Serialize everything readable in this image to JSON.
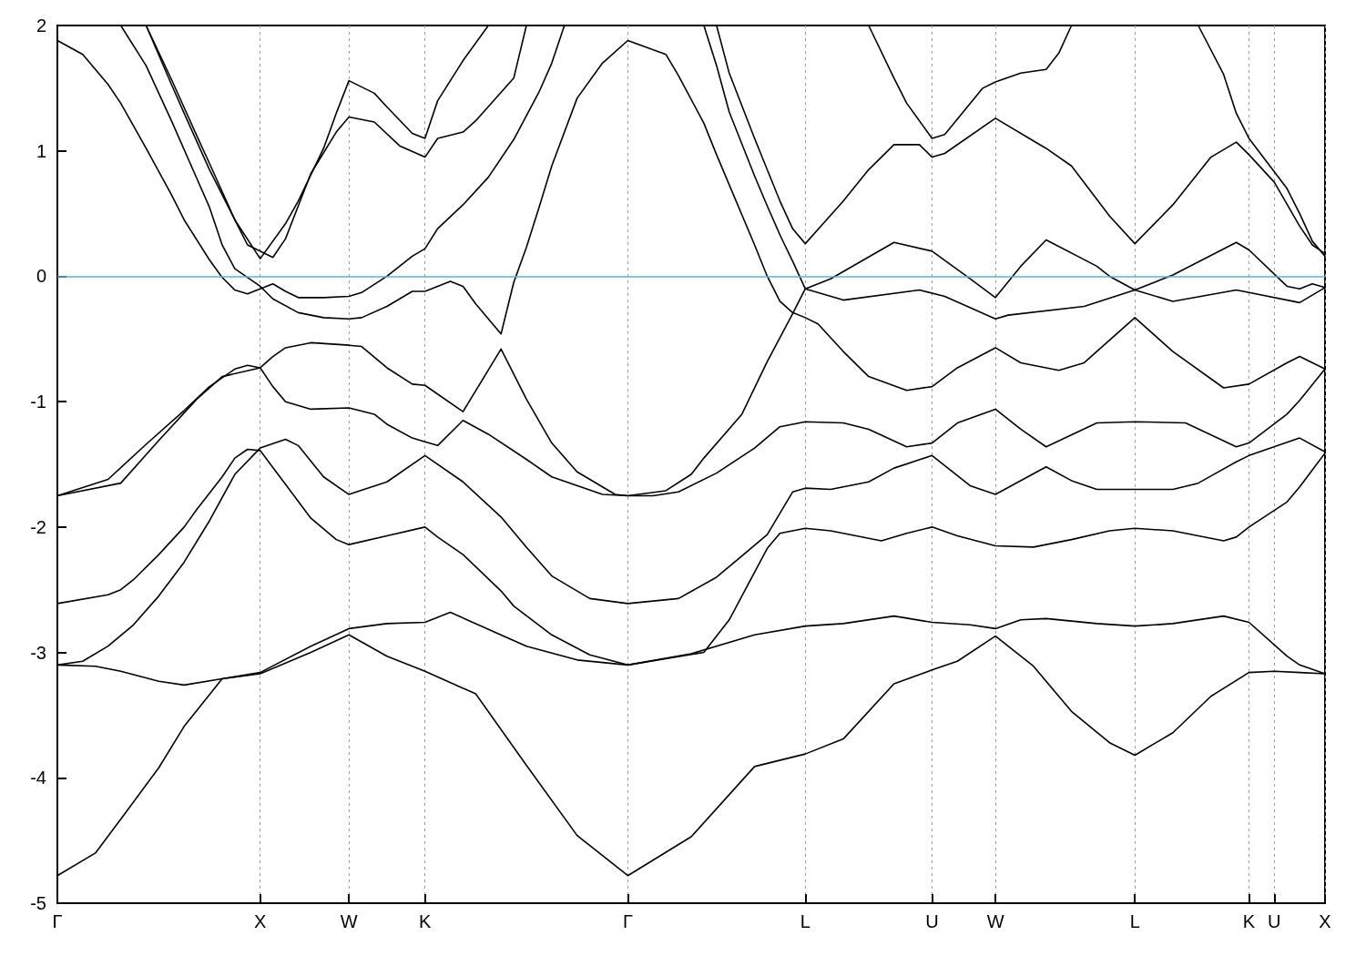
{
  "chart_data": {
    "type": "line",
    "categories": [
      "Γ",
      null,
      null,
      null,
      null,
      null,
      null,
      null,
      null,
      null,
      null,
      null,
      null,
      null,
      null,
      null,
      "X",
      null,
      null,
      null,
      null,
      null,
      null,
      "W",
      null,
      null,
      null,
      null,
      null,
      "K",
      null,
      null,
      null,
      null,
      null,
      null,
      null,
      null,
      null,
      null,
      null,
      null,
      null,
      null,
      null,
      "Γ",
      null,
      null,
      null,
      null,
      null,
      null,
      null,
      null,
      null,
      null,
      null,
      null,
      null,
      "L",
      null,
      null,
      null,
      null,
      null,
      null,
      null,
      null,
      null,
      "U",
      null,
      null,
      null,
      null,
      "W",
      null,
      null,
      null,
      null,
      null,
      null,
      null,
      null,
      null,
      null,
      "L",
      null,
      null,
      null,
      null,
      null,
      null,
      null,
      null,
      "K",
      null,
      "U",
      null,
      null,
      null,
      "X"
    ],
    "ylim": [
      -5,
      2
    ],
    "yticks": [
      -5,
      -4,
      -3,
      -2,
      -1,
      0,
      1,
      2
    ],
    "grid": "x",
    "marker": "none",
    "ref_lines": [
      {
        "axis": "y",
        "value": 0,
        "color": "#56b4e9"
      }
    ],
    "series": [
      {
        "color": "#000000",
        "values": [
          -4.78,
          null,
          null,
          -4.6,
          null,
          -4.33,
          null,
          null,
          -3.92,
          null,
          -3.59,
          null,
          null,
          -3.21,
          null,
          null,
          -3.17,
          null,
          null,
          null,
          -3.0,
          null,
          null,
          -2.86,
          null,
          null,
          -3.03,
          null,
          null,
          -3.15,
          null,
          null,
          null,
          -3.33,
          null,
          null,
          null,
          -3.9,
          null,
          null,
          null,
          -4.46,
          null,
          null,
          null,
          -4.78,
          null,
          null,
          null,
          null,
          -4.47,
          null,
          null,
          null,
          null,
          -3.91,
          null,
          null,
          null,
          -3.81,
          null,
          null,
          -3.69,
          null,
          null,
          null,
          -3.25,
          null,
          null,
          -3.14,
          null,
          -3.07,
          null,
          null,
          -2.87,
          null,
          null,
          -3.11,
          null,
          null,
          -3.47,
          null,
          null,
          -3.72,
          null,
          -3.82,
          null,
          null,
          -3.64,
          null,
          null,
          -3.35,
          null,
          null,
          -3.16,
          null,
          -3.15,
          null,
          -3.16,
          null,
          -3.17
        ]
      },
      {
        "color": "#000000",
        "values": [
          -3.1,
          null,
          null,
          -3.11,
          null,
          -3.15,
          null,
          null,
          -3.23,
          null,
          -3.26,
          null,
          null,
          -3.21,
          null,
          null,
          -3.16,
          null,
          null,
          null,
          -2.95,
          null,
          null,
          -2.81,
          null,
          null,
          -2.77,
          null,
          null,
          -2.76,
          null,
          -2.68,
          null,
          -2.77,
          null,
          null,
          null,
          -2.95,
          null,
          null,
          null,
          -3.06,
          null,
          null,
          null,
          -3.1,
          null,
          null,
          null,
          null,
          -3.01,
          null,
          null,
          null,
          null,
          -2.86,
          null,
          null,
          null,
          -2.79,
          null,
          null,
          -2.77,
          null,
          null,
          null,
          -2.71,
          null,
          null,
          -2.76,
          null,
          null,
          -2.78,
          null,
          -2.81,
          null,
          -2.74,
          null,
          -2.73,
          null,
          null,
          null,
          -2.77,
          null,
          null,
          -2.79,
          null,
          null,
          -2.77,
          null,
          null,
          null,
          -2.71,
          null,
          -2.76,
          null,
          null,
          -3.03,
          -3.1,
          null,
          -3.17
        ]
      },
      {
        "color": "#000000",
        "values": [
          -3.1,
          null,
          -3.07,
          null,
          -2.95,
          null,
          -2.78,
          null,
          -2.55,
          null,
          -2.28,
          null,
          -1.95,
          null,
          -1.58,
          null,
          -1.37,
          null,
          -1.3,
          -1.35,
          null,
          -1.6,
          null,
          -1.74,
          null,
          null,
          -1.64,
          null,
          null,
          -1.43,
          null,
          null,
          -1.64,
          null,
          null,
          -1.92,
          null,
          -2.16,
          null,
          -2.39,
          null,
          null,
          -2.57,
          null,
          null,
          -2.61,
          null,
          null,
          null,
          -2.57,
          null,
          null,
          -2.4,
          null,
          -2.23,
          null,
          -2.06,
          null,
          -1.72,
          -1.69,
          null,
          -1.7,
          null,
          null,
          -1.64,
          null,
          -1.53,
          null,
          null,
          -1.43,
          null,
          null,
          -1.67,
          null,
          -1.74,
          null,
          null,
          null,
          -1.52,
          null,
          -1.63,
          null,
          -1.7,
          null,
          null,
          -1.7,
          null,
          null,
          -1.7,
          null,
          -1.65,
          null,
          null,
          -1.48,
          -1.43,
          null,
          null,
          null,
          -1.29,
          null,
          -1.4
        ]
      },
      {
        "color": "#000000",
        "values": [
          -2.61,
          null,
          null,
          null,
          -2.54,
          -2.5,
          -2.42,
          null,
          -2.22,
          null,
          -2.0,
          -1.86,
          null,
          -1.6,
          -1.45,
          -1.38,
          -1.39,
          null,
          -1.66,
          null,
          -1.93,
          null,
          -2.1,
          -2.14,
          null,
          null,
          -2.07,
          null,
          null,
          -2.0,
          -2.08,
          null,
          -2.22,
          null,
          null,
          -2.51,
          -2.63,
          null,
          null,
          -2.86,
          null,
          null,
          -3.02,
          null,
          null,
          -3.1,
          null,
          null,
          null,
          null,
          null,
          -3.0,
          null,
          -2.74,
          -2.55,
          null,
          -2.17,
          -2.05,
          null,
          -2.01,
          null,
          -2.03,
          null,
          null,
          null,
          -2.11,
          null,
          -2.05,
          null,
          -2.0,
          null,
          -2.07,
          null,
          null,
          -2.15,
          null,
          null,
          -2.16,
          null,
          null,
          -2.1,
          null,
          null,
          -2.03,
          null,
          -2.01,
          null,
          null,
          -2.03,
          null,
          null,
          null,
          -2.11,
          -2.08,
          -2.0,
          null,
          null,
          -1.8,
          -1.68,
          null,
          -1.41
        ]
      },
      {
        "color": "#000000",
        "values": [
          -1.75,
          null,
          null,
          null,
          -1.62,
          null,
          null,
          -1.34,
          null,
          null,
          -1.07,
          null,
          -0.88,
          null,
          -0.74,
          -0.71,
          -0.73,
          -0.64,
          -0.57,
          null,
          -0.53,
          null,
          null,
          -0.55,
          -0.56,
          null,
          -0.73,
          null,
          -0.86,
          -0.87,
          null,
          null,
          -1.08,
          null,
          null,
          -0.58,
          null,
          -0.98,
          null,
          -1.33,
          null,
          -1.56,
          -1.62,
          null,
          -1.74,
          -1.75,
          null,
          -1.75,
          null,
          -1.72,
          null,
          null,
          -1.57,
          null,
          null,
          -1.37,
          null,
          -1.2,
          null,
          -1.16,
          null,
          null,
          -1.17,
          null,
          -1.22,
          null,
          null,
          -1.36,
          null,
          -1.33,
          null,
          -1.17,
          null,
          null,
          -1.06,
          null,
          -1.22,
          null,
          -1.36,
          null,
          null,
          null,
          -1.17,
          null,
          null,
          -1.16,
          null,
          null,
          null,
          -1.17,
          null,
          null,
          null,
          -1.36,
          -1.33,
          null,
          null,
          -1.1,
          -0.99,
          null,
          -0.74
        ]
      },
      {
        "color": "#000000",
        "values": [
          -1.75,
          null,
          null,
          null,
          null,
          -1.65,
          null,
          null,
          -1.31,
          null,
          null,
          -0.98,
          null,
          -0.8,
          null,
          null,
          -0.73,
          -0.88,
          -1.0,
          null,
          -1.06,
          null,
          null,
          -1.05,
          null,
          -1.1,
          -1.18,
          null,
          -1.29,
          -1.32,
          -1.35,
          null,
          -1.15,
          null,
          -1.26,
          null,
          null,
          -1.46,
          null,
          -1.6,
          null,
          null,
          null,
          -1.74,
          null,
          -1.75,
          null,
          null,
          -1.71,
          null,
          -1.58,
          -1.45,
          null,
          null,
          -1.1,
          null,
          -0.68,
          null,
          -0.3,
          -0.1,
          null,
          -0.02,
          null,
          null,
          null,
          null,
          0.27,
          null,
          null,
          0.2,
          null,
          null,
          -0.02,
          null,
          -0.17,
          null,
          0.08,
          null,
          0.29,
          null,
          null,
          null,
          0.08,
          0.0,
          null,
          -0.11,
          null,
          null,
          0.01,
          null,
          null,
          null,
          null,
          0.27,
          0.21,
          null,
          null,
          -0.08,
          -0.1,
          -0.06,
          -0.09
        ]
      },
      {
        "color": "#000000",
        "values": [
          null,
          null,
          null,
          null,
          null,
          null,
          null,
          null,
          null,
          null,
          null,
          null,
          null,
          null,
          null,
          null,
          null,
          null,
          null,
          null,
          null,
          null,
          null,
          null,
          null,
          null,
          null,
          null,
          null,
          null,
          null,
          null,
          null,
          null,
          null,
          null,
          null,
          null,
          null,
          null,
          null,
          null,
          null,
          null,
          null,
          null,
          null,
          null,
          null,
          null,
          null,
          2,
          1.68,
          1.31,
          null,
          0.8,
          0.56,
          0.33,
          0.12,
          -0.1,
          null,
          null,
          -0.19,
          null,
          null,
          null,
          null,
          null,
          -0.11,
          null,
          -0.16,
          null,
          null,
          null,
          -0.34,
          -0.31,
          null,
          null,
          null,
          null,
          null,
          -0.24,
          null,
          null,
          null,
          -0.11,
          null,
          null,
          -0.2,
          null,
          null,
          null,
          null,
          -0.11,
          -0.13,
          null,
          null,
          null,
          -0.21,
          null,
          -0.09
        ]
      },
      {
        "color": "#000000",
        "values": [
          null,
          null,
          null,
          null,
          null,
          2,
          null,
          1.68,
          null,
          1.24,
          null,
          0.78,
          0.55,
          0.25,
          0.06,
          null,
          -0.08,
          -0.18,
          null,
          -0.29,
          null,
          -0.33,
          null,
          -0.34,
          -0.33,
          null,
          -0.24,
          null,
          -0.12,
          -0.12,
          null,
          -0.04,
          -0.08,
          -0.22,
          null,
          -0.46,
          -0.05,
          0.23,
          0.55,
          0.88,
          null,
          1.42,
          null,
          1.7,
          null,
          1.88,
          null,
          null,
          1.77,
          1.6,
          null,
          1.22,
          0.97,
          null,
          null,
          0.25,
          0.0,
          -0.2,
          -0.29,
          -0.33,
          -0.38,
          null,
          -0.6,
          null,
          -0.8,
          null,
          null,
          -0.91,
          null,
          -0.88,
          null,
          -0.73,
          null,
          null,
          -0.57,
          null,
          -0.69,
          null,
          null,
          -0.75,
          null,
          -0.69,
          null,
          null,
          null,
          -0.33,
          null,
          null,
          -0.6,
          null,
          null,
          null,
          -0.89,
          null,
          -0.86,
          null,
          null,
          -0.69,
          -0.64,
          null,
          -0.74
        ]
      },
      {
        "color": "#000000",
        "values": [
          1.88,
          null,
          1.77,
          null,
          1.53,
          1.38,
          null,
          1.02,
          null,
          0.65,
          0.45,
          null,
          0.13,
          -0.01,
          -0.11,
          -0.14,
          -0.1,
          -0.06,
          -0.12,
          -0.17,
          null,
          -0.17,
          null,
          -0.16,
          -0.13,
          null,
          0.0,
          null,
          0.16,
          0.22,
          0.38,
          null,
          0.57,
          null,
          0.79,
          null,
          1.09,
          null,
          1.47,
          1.7,
          2,
          null,
          null,
          null,
          null,
          null,
          null,
          null,
          null,
          null,
          null,
          null,
          null,
          null,
          null,
          null,
          null,
          null,
          null,
          null,
          null,
          null,
          null,
          null,
          null,
          null,
          null,
          null,
          null,
          null,
          null,
          null,
          null,
          null,
          null,
          null,
          null,
          null,
          null,
          null,
          null,
          null,
          null,
          null,
          null,
          null,
          null,
          null,
          null,
          null,
          null,
          null,
          null,
          null,
          null,
          null,
          null,
          null,
          null,
          null,
          null
        ]
      },
      {
        "color": "#000000",
        "values": [
          null,
          null,
          null,
          null,
          null,
          null,
          null,
          2,
          null,
          1.53,
          1.3,
          null,
          0.85,
          null,
          0.45,
          null,
          0.14,
          null,
          0.42,
          0.6,
          null,
          1.02,
          1.3,
          1.56,
          null,
          1.46,
          1.35,
          null,
          1.14,
          1.1,
          1.4,
          null,
          1.72,
          null,
          2,
          null,
          null,
          null,
          null,
          null,
          null,
          null,
          null,
          null,
          null,
          null,
          null,
          null,
          null,
          null,
          null,
          null,
          null,
          null,
          null,
          null,
          null,
          null,
          null,
          null,
          null,
          null,
          null,
          null,
          null,
          null,
          null,
          null,
          null,
          null,
          null,
          null,
          null,
          null,
          null,
          null,
          null,
          null,
          null,
          null,
          null,
          null,
          null,
          null,
          null,
          null,
          null,
          null,
          null,
          null,
          null,
          null,
          null,
          null,
          null,
          null,
          null,
          null,
          null,
          null,
          null
        ]
      },
      {
        "color": "#000000",
        "values": [
          null,
          null,
          null,
          null,
          null,
          null,
          null,
          2,
          null,
          1.57,
          null,
          1.12,
          0.9,
          null,
          0.45,
          0.25,
          null,
          0.15,
          0.3,
          null,
          0.82,
          null,
          1.15,
          1.27,
          null,
          1.23,
          null,
          1.04,
          null,
          0.95,
          1.1,
          null,
          1.15,
          1.24,
          null,
          null,
          1.58,
          2,
          null,
          null,
          null,
          null,
          null,
          null,
          null,
          null,
          null,
          null,
          null,
          null,
          null,
          null,
          null,
          null,
          null,
          null,
          null,
          null,
          null,
          null,
          null,
          null,
          null,
          null,
          null,
          null,
          null,
          null,
          null,
          null,
          null,
          null,
          null,
          null,
          null,
          null,
          null,
          null,
          null,
          null,
          null,
          null,
          null,
          null,
          null,
          null,
          null,
          null,
          null,
          null,
          null,
          null,
          null,
          null,
          null,
          null,
          null,
          null,
          null,
          null,
          null
        ]
      },
      {
        "color": "#000000",
        "values": [
          null,
          null,
          null,
          null,
          null,
          null,
          null,
          null,
          null,
          null,
          null,
          null,
          null,
          null,
          null,
          null,
          null,
          null,
          null,
          null,
          null,
          null,
          null,
          null,
          null,
          null,
          null,
          null,
          null,
          null,
          null,
          null,
          null,
          null,
          null,
          null,
          null,
          null,
          null,
          null,
          null,
          null,
          null,
          null,
          null,
          null,
          null,
          null,
          null,
          null,
          null,
          null,
          2,
          1.62,
          null,
          1.1,
          null,
          0.6,
          0.38,
          0.26,
          null,
          null,
          0.6,
          null,
          0.85,
          null,
          1.05,
          null,
          1.05,
          0.95,
          0.98,
          null,
          null,
          null,
          1.26,
          null,
          null,
          1.08,
          1.02,
          null,
          0.88,
          null,
          null,
          0.48,
          null,
          0.26,
          null,
          null,
          0.57,
          null,
          null,
          0.95,
          null,
          1.07,
          0.97,
          null,
          0.75,
          null,
          0.4,
          0.25,
          0.18
        ]
      },
      {
        "color": "#000000",
        "values": [
          null,
          null,
          null,
          null,
          null,
          null,
          null,
          null,
          null,
          null,
          null,
          null,
          null,
          null,
          null,
          null,
          null,
          null,
          null,
          null,
          null,
          null,
          null,
          null,
          null,
          null,
          null,
          null,
          null,
          null,
          null,
          null,
          null,
          null,
          null,
          null,
          null,
          null,
          null,
          null,
          null,
          null,
          null,
          null,
          null,
          null,
          null,
          null,
          null,
          null,
          null,
          null,
          null,
          null,
          null,
          null,
          null,
          null,
          null,
          null,
          null,
          null,
          null,
          null,
          2,
          null,
          1.58,
          1.38,
          null,
          1.1,
          1.13,
          null,
          null,
          1.5,
          1.55,
          null,
          1.62,
          null,
          1.65,
          1.78,
          2,
          null,
          null,
          null,
          null,
          null,
          null,
          null,
          null,
          null,
          null,
          null,
          null,
          null,
          null,
          null,
          null,
          null,
          null,
          null,
          null
        ]
      },
      {
        "color": "#000000",
        "values": [
          null,
          null,
          null,
          null,
          null,
          null,
          null,
          null,
          null,
          null,
          null,
          null,
          null,
          null,
          null,
          null,
          null,
          null,
          null,
          null,
          null,
          null,
          null,
          null,
          null,
          null,
          null,
          null,
          null,
          null,
          null,
          null,
          null,
          null,
          null,
          null,
          null,
          null,
          null,
          null,
          null,
          null,
          null,
          null,
          null,
          null,
          null,
          null,
          null,
          null,
          null,
          null,
          null,
          null,
          null,
          null,
          null,
          null,
          null,
          null,
          null,
          null,
          null,
          null,
          null,
          null,
          null,
          null,
          null,
          null,
          null,
          null,
          null,
          null,
          null,
          null,
          null,
          null,
          null,
          null,
          null,
          null,
          null,
          null,
          null,
          null,
          null,
          null,
          null,
          null,
          2,
          null,
          1.61,
          1.3,
          1.1,
          null,
          null,
          0.7,
          0.5,
          0.28,
          0.16
        ]
      }
    ]
  }
}
